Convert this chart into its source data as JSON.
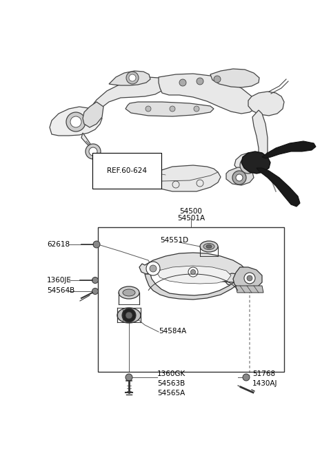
{
  "bg_color": "#ffffff",
  "fig_width": 4.8,
  "fig_height": 6.55,
  "dpi": 100,
  "line_color": "#2a2a2a",
  "text_color": "#000000",
  "dark_fill": "#1a1a1a",
  "gray_fill": "#cccccc",
  "label_REF": "REF.60-624",
  "label_54500": "54500",
  "label_54501A": "54501A",
  "label_62618": "62618",
  "label_54551D": "54551D",
  "label_1360JE": "1360JE",
  "label_54564B": "54564B",
  "label_54584A": "54584A",
  "label_1360GK": "1360GK",
  "label_54563B": "54563B",
  "label_54565A": "54565A",
  "label_51768": "51768",
  "label_1430AJ": "1430AJ",
  "font_size": 7.5
}
